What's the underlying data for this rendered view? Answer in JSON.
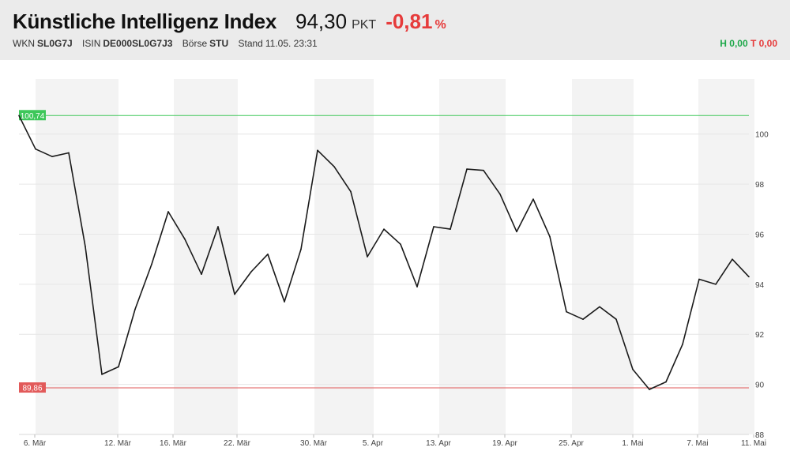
{
  "header": {
    "title": "Künstliche Intelligenz Index",
    "price": "94,30",
    "unit": "PKT",
    "change": "-0,81",
    "change_unit": "%",
    "meta": [
      {
        "label": "WKN",
        "value": "SL0G7J"
      },
      {
        "label": "ISIN",
        "value": "DE000SL0G7J3"
      },
      {
        "label": "Börse",
        "value": "STU"
      },
      {
        "label": "Stand",
        "value": "11.05. 23:31"
      }
    ],
    "high_text": "H 0,00",
    "low_text": "T 0,00"
  },
  "colors": {
    "line": "#1a1a1a",
    "high_marker": "#3ec75a",
    "low_marker": "#e25a5a",
    "band": "#f3f3f3",
    "positive": "#1ea84a",
    "negative": "#e63b3b"
  },
  "chart_data": {
    "type": "line",
    "title": "",
    "xlabel": "",
    "ylabel": "",
    "ylim": [
      88,
      102.2
    ],
    "y_ticks": [
      "88",
      "90",
      "92",
      "94",
      "96",
      "98",
      "100"
    ],
    "x_ticks": [
      "6. Mär",
      "12. Mär",
      "16. Mär",
      "22. Mär",
      "30. Mär",
      "5. Apr",
      "13. Apr",
      "19. Apr",
      "25. Apr",
      "1. Mai",
      "7. Mai",
      "11. Mai"
    ],
    "max_marker": {
      "value": 100.74,
      "label": "100,74"
    },
    "min_marker": {
      "value": 89.86,
      "label": "89,86"
    },
    "series": [
      {
        "values": [
          100.74,
          99.4,
          99.1,
          99.25,
          95.5,
          90.4,
          90.7,
          93.0,
          94.8,
          96.9,
          95.8,
          94.4,
          96.3,
          93.6,
          94.5,
          95.2,
          93.3,
          95.4,
          99.35,
          98.7,
          97.7,
          95.1,
          96.2,
          95.6,
          93.9,
          96.3,
          96.2,
          98.6,
          98.55,
          97.6,
          96.1,
          97.4,
          95.9,
          92.9,
          92.6,
          93.1,
          92.6,
          90.6,
          89.8,
          90.1,
          91.6,
          94.2,
          94.0,
          95.0,
          94.3
        ]
      }
    ]
  }
}
